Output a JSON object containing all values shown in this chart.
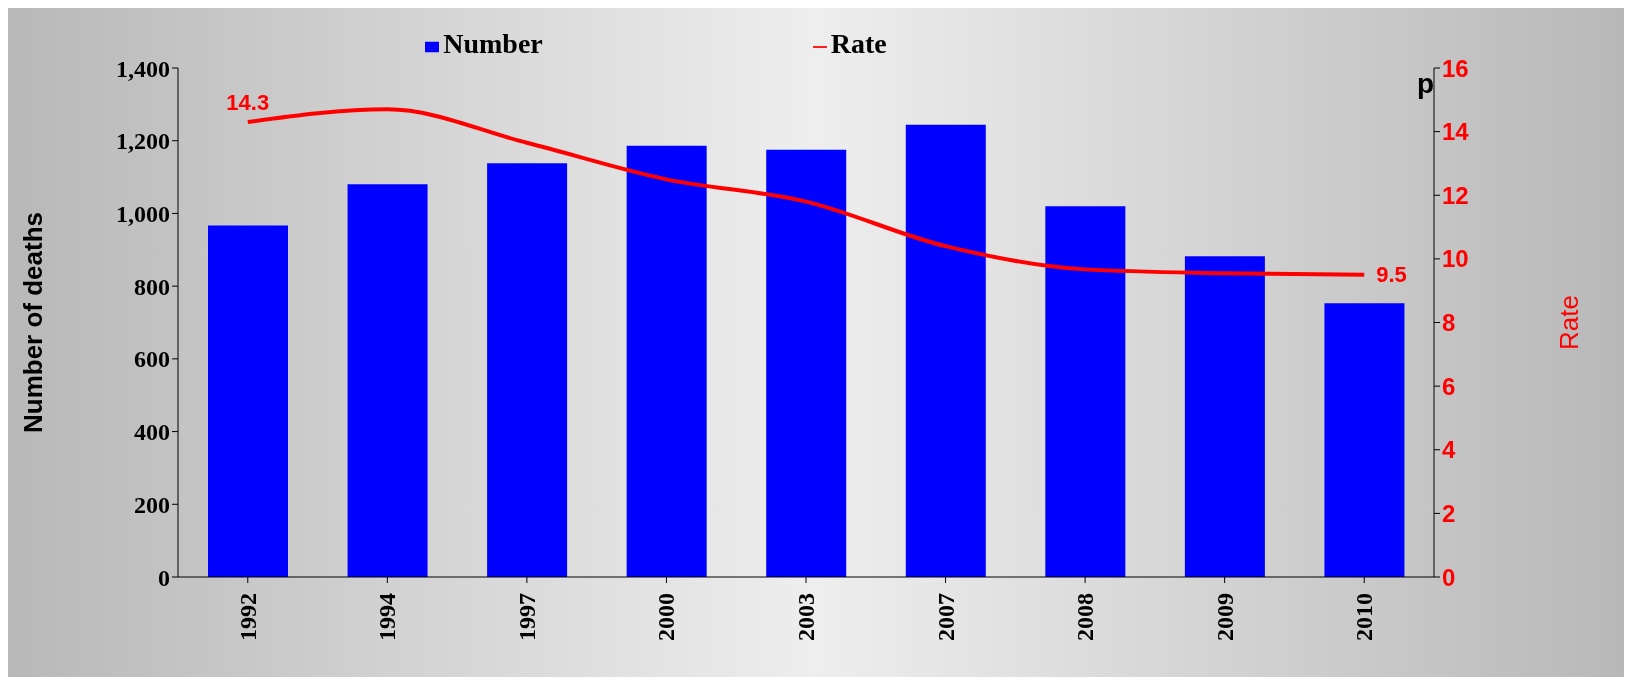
{
  "chart_data": {
    "type": "bar",
    "ylabel": "Number of deaths",
    "y2label": "Rate",
    "categories": [
      "1992",
      "1994",
      "1997",
      "2000",
      "2003",
      "2007",
      "2008",
      "2009",
      "2010"
    ],
    "series": [
      {
        "name": "Number",
        "color": "#0000ff",
        "values": [
          967,
          1080,
          1138,
          1186,
          1175,
          1244,
          1020,
          882,
          753
        ]
      },
      {
        "name": "Rate",
        "type": "line",
        "axis": "y2",
        "color": "#ff0000",
        "values": [
          14.3,
          14.7,
          13.65,
          12.5,
          11.8,
          10.4,
          9.67,
          9.55,
          9.5
        ],
        "value_labels": [
          "14.3",
          null,
          null,
          null,
          null,
          null,
          null,
          null,
          "9.5"
        ]
      }
    ],
    "ylim": [
      0,
      1400
    ],
    "yticks": [
      0,
      200,
      400,
      600,
      800,
      {
        "value": 1000,
        "label": "1,000"
      },
      {
        "value": 1200,
        "label": "1,200"
      },
      {
        "value": 1400,
        "label": "1,400"
      }
    ],
    "y2lim": [
      0,
      16
    ],
    "y2ticks": [
      0,
      2,
      4,
      6,
      8,
      10,
      12,
      14,
      16
    ],
    "annotations": [
      "p"
    ],
    "grid": false,
    "legend": "top",
    "marker": "none",
    "line_style": "solid"
  }
}
